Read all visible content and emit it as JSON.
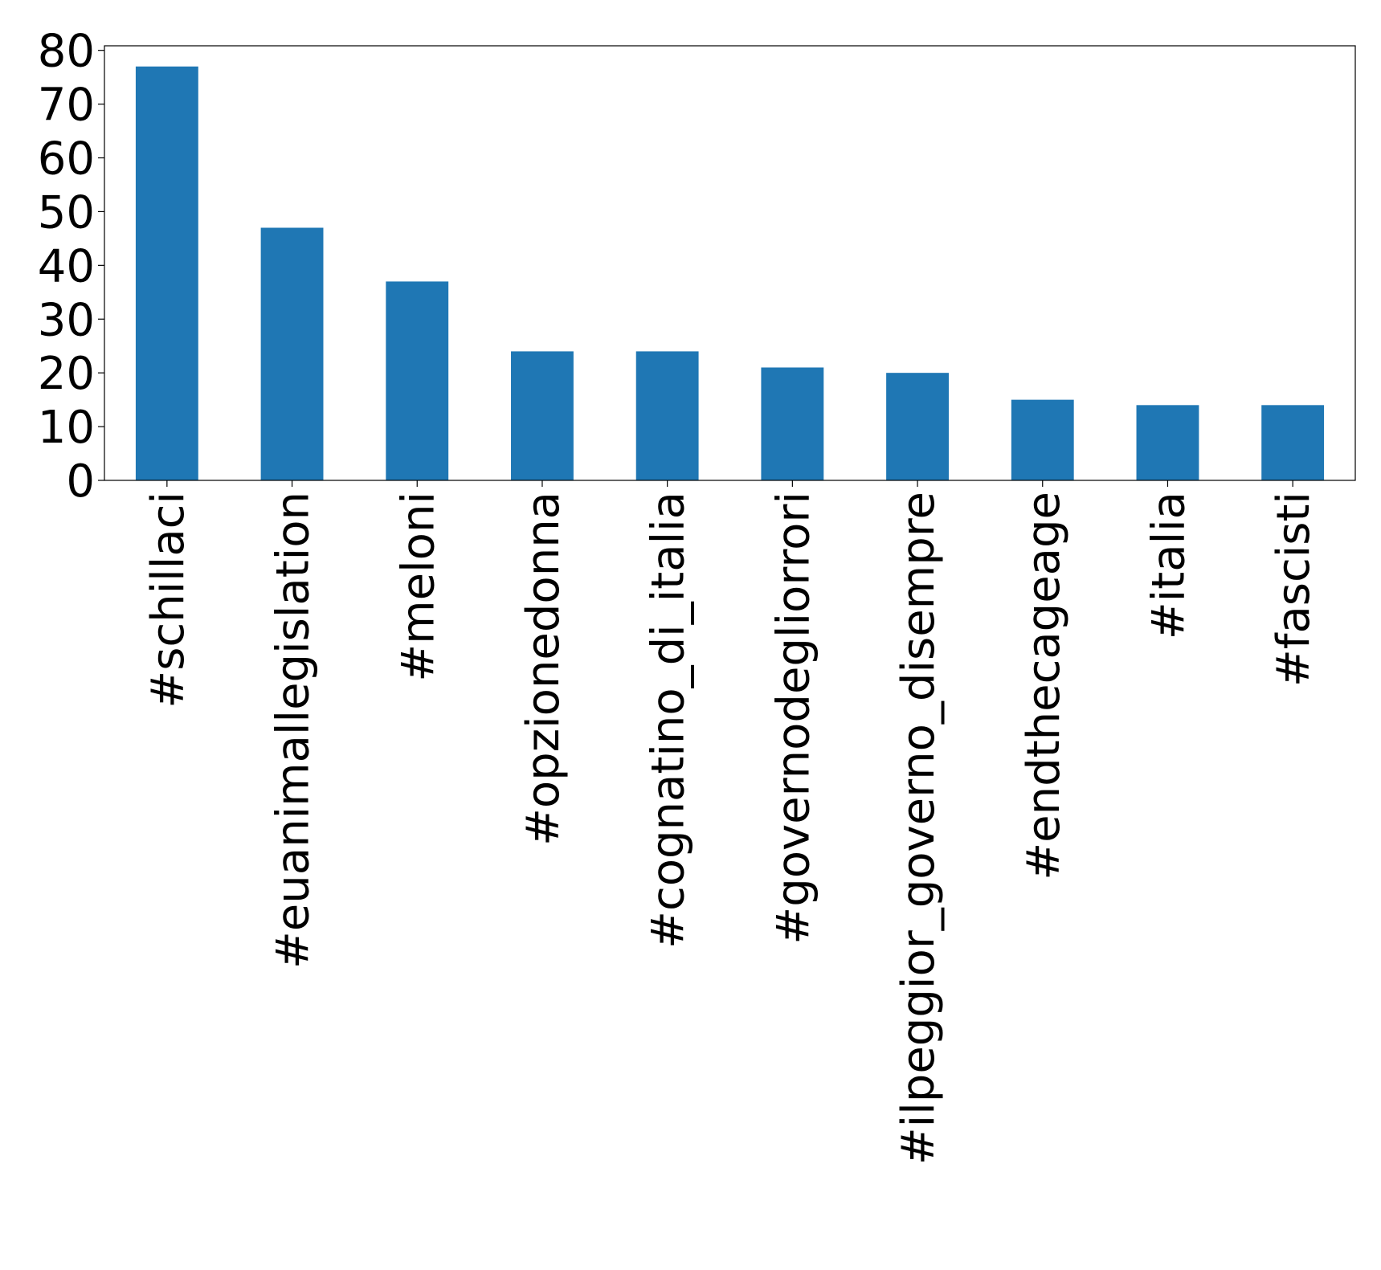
{
  "chart_data": {
    "type": "bar",
    "categories": [
      "#schillaci",
      "#euanimallegislation",
      "#meloni",
      "#opzionedonna",
      "#cognatino_di_italia",
      "#governodegliorrori",
      "#ilpeggior_governo_disempre",
      "#endthecageage",
      "#italia",
      "#fascisti"
    ],
    "values": [
      77,
      47,
      37,
      24,
      24,
      21,
      20,
      15,
      14,
      14
    ],
    "color": "#1f77b4",
    "ylim": [
      0,
      80.85
    ],
    "yticks": [
      0,
      10,
      20,
      30,
      40,
      50,
      60,
      70,
      80
    ],
    "grid": false
  }
}
